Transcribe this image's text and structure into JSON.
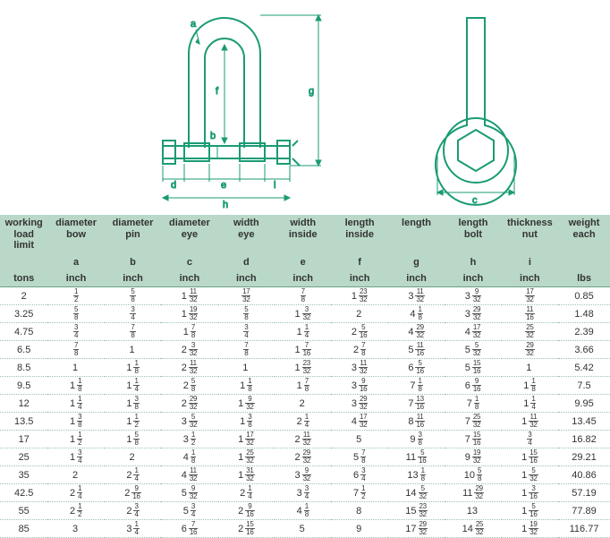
{
  "diagram_color": "#1a9b74",
  "columns": [
    {
      "h1": "working load limit",
      "h2": "tons",
      "letter": ""
    },
    {
      "h1": "diameter bow",
      "h2": "inch",
      "letter": "a"
    },
    {
      "h1": "diameter pin",
      "h2": "inch",
      "letter": "b"
    },
    {
      "h1": "diameter eye",
      "h2": "inch",
      "letter": "c"
    },
    {
      "h1": "width eye",
      "h2": "inch",
      "letter": "d"
    },
    {
      "h1": "width inside",
      "h2": "inch",
      "letter": "e"
    },
    {
      "h1": "length inside",
      "h2": "inch",
      "letter": "f"
    },
    {
      "h1": "length",
      "h2": "inch",
      "letter": "g"
    },
    {
      "h1": "length bolt",
      "h2": "inch",
      "letter": "h"
    },
    {
      "h1": "thickness nut",
      "h2": "inch",
      "letter": "i"
    },
    {
      "h1": "weight each",
      "h2": "lbs",
      "letter": ""
    }
  ],
  "rows": [
    [
      "2",
      [
        0,
        1,
        2
      ],
      [
        0,
        5,
        8
      ],
      [
        1,
        11,
        32
      ],
      [
        0,
        17,
        32
      ],
      [
        0,
        7,
        8
      ],
      [
        1,
        23,
        32
      ],
      [
        3,
        11,
        32
      ],
      [
        3,
        9,
        32
      ],
      [
        0,
        17,
        32
      ],
      "0.85"
    ],
    [
      "3.25",
      [
        0,
        5,
        8
      ],
      [
        0,
        3,
        4
      ],
      [
        1,
        19,
        32
      ],
      [
        0,
        5,
        8
      ],
      [
        1,
        3,
        32
      ],
      [
        2,
        0,
        0
      ],
      [
        4,
        1,
        8
      ],
      [
        3,
        29,
        32
      ],
      [
        0,
        11,
        16
      ],
      "1.48"
    ],
    [
      "4.75",
      [
        0,
        3,
        4
      ],
      [
        0,
        7,
        8
      ],
      [
        1,
        7,
        8
      ],
      [
        0,
        3,
        4
      ],
      [
        1,
        1,
        4
      ],
      [
        2,
        5,
        16
      ],
      [
        4,
        29,
        32
      ],
      [
        4,
        17,
        32
      ],
      [
        0,
        25,
        32
      ],
      "2.39"
    ],
    [
      "6.5",
      [
        0,
        7,
        8
      ],
      [
        1,
        0,
        0
      ],
      [
        2,
        3,
        32
      ],
      [
        0,
        7,
        8
      ],
      [
        1,
        7,
        16
      ],
      [
        2,
        7,
        8
      ],
      [
        5,
        11,
        16
      ],
      [
        5,
        5,
        32
      ],
      [
        0,
        29,
        32
      ],
      "3.66"
    ],
    [
      "8.5",
      [
        1,
        0,
        0
      ],
      [
        1,
        1,
        8
      ],
      [
        2,
        11,
        32
      ],
      [
        1,
        0,
        0
      ],
      [
        1,
        23,
        32
      ],
      [
        3,
        11,
        32
      ],
      [
        6,
        5,
        16
      ],
      [
        5,
        15,
        16
      ],
      [
        1,
        0,
        0
      ],
      "5.42"
    ],
    [
      "9.5",
      [
        1,
        1,
        8
      ],
      [
        1,
        1,
        4
      ],
      [
        2,
        5,
        8
      ],
      [
        1,
        1,
        8
      ],
      [
        1,
        7,
        8
      ],
      [
        3,
        9,
        16
      ],
      [
        7,
        1,
        8
      ],
      [
        6,
        9,
        16
      ],
      [
        1,
        1,
        8
      ],
      "7.5"
    ],
    [
      "12",
      [
        1,
        1,
        4
      ],
      [
        1,
        3,
        8
      ],
      [
        2,
        29,
        32
      ],
      [
        1,
        9,
        32
      ],
      [
        2,
        0,
        0
      ],
      [
        3,
        29,
        32
      ],
      [
        7,
        13,
        16
      ],
      [
        7,
        1,
        8
      ],
      [
        1,
        1,
        4
      ],
      "9.95"
    ],
    [
      "13.5",
      [
        1,
        3,
        8
      ],
      [
        1,
        1,
        2
      ],
      [
        3,
        5,
        32
      ],
      [
        1,
        3,
        8
      ],
      [
        2,
        1,
        4
      ],
      [
        4,
        17,
        32
      ],
      [
        8,
        11,
        16
      ],
      [
        7,
        25,
        32
      ],
      [
        1,
        11,
        32
      ],
      "13.45"
    ],
    [
      "17",
      [
        1,
        1,
        2
      ],
      [
        1,
        5,
        8
      ],
      [
        3,
        1,
        2
      ],
      [
        1,
        17,
        32
      ],
      [
        2,
        11,
        32
      ],
      [
        5,
        0,
        0
      ],
      [
        9,
        3,
        8
      ],
      [
        7,
        15,
        16
      ],
      [
        0,
        3,
        4
      ],
      "16.82"
    ],
    [
      "25",
      [
        1,
        3,
        4
      ],
      [
        2,
        0,
        0
      ],
      [
        4,
        1,
        8
      ],
      [
        1,
        25,
        32
      ],
      [
        2,
        29,
        32
      ],
      [
        5,
        7,
        8
      ],
      [
        11,
        5,
        16
      ],
      [
        9,
        19,
        32
      ],
      [
        1,
        15,
        16
      ],
      "29.21"
    ],
    [
      "35",
      [
        2,
        0,
        0
      ],
      [
        2,
        1,
        4
      ],
      [
        4,
        11,
        32
      ],
      [
        1,
        31,
        32
      ],
      [
        3,
        9,
        32
      ],
      [
        6,
        3,
        4
      ],
      [
        13,
        1,
        8
      ],
      [
        10,
        5,
        8
      ],
      [
        1,
        5,
        32
      ],
      "40.86"
    ],
    [
      "42.5",
      [
        2,
        1,
        4
      ],
      [
        2,
        9,
        16
      ],
      [
        5,
        9,
        32
      ],
      [
        2,
        1,
        4
      ],
      [
        3,
        3,
        4
      ],
      [
        7,
        1,
        2
      ],
      [
        14,
        5,
        32
      ],
      [
        11,
        29,
        32
      ],
      [
        1,
        3,
        16
      ],
      "57.19"
    ],
    [
      "55",
      [
        2,
        1,
        2
      ],
      [
        2,
        3,
        4
      ],
      [
        5,
        3,
        4
      ],
      [
        2,
        9,
        16
      ],
      [
        4,
        1,
        8
      ],
      [
        8,
        0,
        0
      ],
      [
        15,
        23,
        32
      ],
      [
        13,
        0,
        0
      ],
      [
        1,
        5,
        16
      ],
      "77.89"
    ],
    [
      "85",
      [
        3,
        0,
        0
      ],
      [
        3,
        1,
        4
      ],
      [
        6,
        7,
        16
      ],
      [
        2,
        15,
        16
      ],
      [
        5,
        0,
        0
      ],
      [
        9,
        0,
        0
      ],
      [
        17,
        29,
        32
      ],
      [
        14,
        25,
        32
      ],
      [
        1,
        19,
        32
      ],
      "116.77"
    ]
  ]
}
